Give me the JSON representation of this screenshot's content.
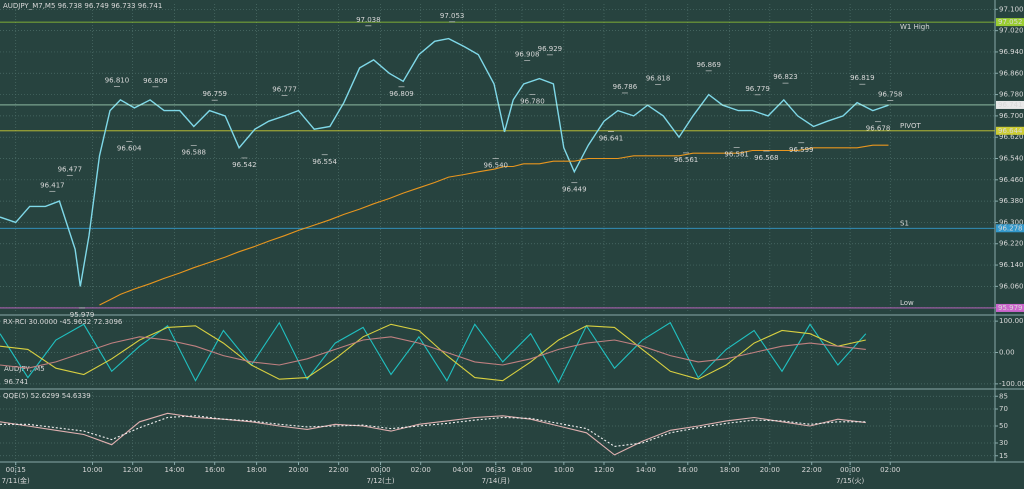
{
  "chart_data": [
    {
      "type": "line",
      "title": "AUDJPY_M7,M5  96.738 96.749 96.733 96.741",
      "symbol": "AUDJPY, M5",
      "last_price": 96.741,
      "xlim": [
        0,
        570
      ],
      "ylim": [
        95.96,
        97.12
      ],
      "grid": true,
      "xticks": [
        {
          "value": 9,
          "label": "00:15"
        },
        {
          "value": 53,
          "label": "10:00"
        },
        {
          "value": 76,
          "label": "12:00"
        },
        {
          "value": 100,
          "label": "14:00"
        },
        {
          "value": 123,
          "label": "16:00"
        },
        {
          "value": 147,
          "label": "18:00"
        },
        {
          "value": 171,
          "label": "20:00"
        },
        {
          "value": 194,
          "label": "22:00"
        },
        {
          "value": 218,
          "label": "00:00"
        },
        {
          "value": 241,
          "label": "02:00"
        },
        {
          "value": 265,
          "label": "04:00"
        },
        {
          "value": 284,
          "label": "06:35"
        },
        {
          "value": 299,
          "label": "08:00"
        },
        {
          "value": 323,
          "label": "10:00"
        },
        {
          "value": 346,
          "label": "12:00"
        },
        {
          "value": 370,
          "label": "14:00"
        },
        {
          "value": 394,
          "label": "16:00"
        },
        {
          "value": 418,
          "label": "18:00"
        },
        {
          "value": 441,
          "label": "20:00"
        },
        {
          "value": 465,
          "label": "22:00"
        },
        {
          "value": 487,
          "label": "00:00"
        },
        {
          "value": 510,
          "label": "02:00"
        }
      ],
      "dates": [
        {
          "value": 9,
          "label": "7/11(金)"
        },
        {
          "value": 218,
          "label": "7/12(土)"
        },
        {
          "value": 284,
          "label": "7/14(月)"
        },
        {
          "value": 487,
          "label": "7/15(火)"
        }
      ],
      "yticks": [
        {
          "value": 97.1,
          "label": "97.100"
        },
        {
          "value": 97.02,
          "label": "97.020"
        },
        {
          "value": 96.94,
          "label": "96.940"
        },
        {
          "value": 96.86,
          "label": "96.860"
        },
        {
          "value": 96.78,
          "label": "96.780"
        },
        {
          "value": 96.7,
          "label": "96.700"
        },
        {
          "value": 96.62,
          "label": "96.620"
        },
        {
          "value": 96.54,
          "label": "96.540"
        },
        {
          "value": 96.46,
          "label": "96.460"
        },
        {
          "value": 96.38,
          "label": "96.380"
        },
        {
          "value": 96.3,
          "label": "96.300"
        },
        {
          "value": 96.22,
          "label": "96.220"
        },
        {
          "value": 96.14,
          "label": "96.140"
        },
        {
          "value": 96.06,
          "label": "96.060"
        },
        {
          "value": 95.98,
          "label": "95.980"
        }
      ],
      "x": [
        0,
        9,
        17,
        26,
        34,
        43,
        46,
        51,
        57,
        63,
        69,
        77,
        86,
        94,
        103,
        111,
        120,
        129,
        137,
        146,
        154,
        163,
        171,
        180,
        189,
        197,
        206,
        214,
        223,
        231,
        240,
        249,
        257,
        266,
        274,
        283,
        289,
        294,
        300,
        309,
        317,
        323,
        329,
        337,
        346,
        354,
        363,
        371,
        380,
        389,
        397,
        406,
        414,
        423,
        431,
        440,
        449,
        457,
        466,
        474,
        483,
        491,
        500,
        509
      ],
      "series": [
        {
          "color": "#7fd8e8",
          "values": [
            96.32,
            96.3,
            96.36,
            96.36,
            96.38,
            96.2,
            96.06,
            96.25,
            96.55,
            96.72,
            96.76,
            96.73,
            96.76,
            96.72,
            96.72,
            96.66,
            96.72,
            96.7,
            96.58,
            96.65,
            96.68,
            96.7,
            96.72,
            96.65,
            96.66,
            96.75,
            96.88,
            96.91,
            96.86,
            96.83,
            96.93,
            96.98,
            96.99,
            96.96,
            96.93,
            96.82,
            96.64,
            96.76,
            96.82,
            96.84,
            96.82,
            96.58,
            96.49,
            96.59,
            96.68,
            96.72,
            96.7,
            96.74,
            96.7,
            96.62,
            96.7,
            96.78,
            96.74,
            96.72,
            96.72,
            96.7,
            96.76,
            96.7,
            96.66,
            96.68,
            96.7,
            96.75,
            96.72,
            96.74
          ]
        },
        {
          "color": "#e8961e",
          "values": [
            null,
            null,
            null,
            null,
            null,
            null,
            null,
            null,
            95.99,
            96.01,
            96.03,
            96.05,
            96.07,
            96.09,
            96.11,
            96.13,
            96.15,
            96.17,
            96.19,
            96.21,
            96.23,
            96.25,
            96.27,
            96.29,
            96.31,
            96.33,
            96.35,
            96.37,
            96.39,
            96.41,
            96.43,
            96.45,
            96.47,
            96.48,
            96.49,
            96.5,
            96.51,
            96.51,
            96.52,
            96.52,
            96.53,
            96.53,
            96.53,
            96.54,
            96.54,
            96.54,
            96.55,
            96.55,
            96.55,
            96.55,
            96.56,
            96.56,
            96.56,
            96.56,
            96.57,
            96.57,
            96.57,
            96.57,
            96.58,
            96.58,
            96.58,
            96.58,
            96.59,
            96.59
          ]
        }
      ],
      "levels": [
        {
          "value": 97.052,
          "label": "W1 High",
          "color": "#9acd32"
        },
        {
          "value": 96.644,
          "label": "PIVOT",
          "color": "#cccc33"
        },
        {
          "value": 96.278,
          "label": "S1",
          "color": "#3399cc"
        },
        {
          "value": 95.979,
          "label": "Low",
          "color": "#cc66cc"
        }
      ],
      "annotations": [
        {
          "x": 30,
          "value": 96.417,
          "label": "96.417"
        },
        {
          "x": 40,
          "value": 96.477,
          "label": "96.477"
        },
        {
          "x": 47,
          "value": 95.979,
          "label": "95.979"
        },
        {
          "x": 67,
          "value": 96.81,
          "label": "96.810"
        },
        {
          "x": 74,
          "value": 96.604,
          "label": "96.604"
        },
        {
          "x": 89,
          "value": 96.809,
          "label": "96.809"
        },
        {
          "x": 111,
          "value": 96.588,
          "label": "96.588"
        },
        {
          "x": 123,
          "value": 96.759,
          "label": "96.759"
        },
        {
          "x": 140,
          "value": 96.542,
          "label": "96.542"
        },
        {
          "x": 163,
          "value": 96.777,
          "label": "96.777"
        },
        {
          "x": 186,
          "value": 96.554,
          "label": "96.554"
        },
        {
          "x": 211,
          "value": 97.038,
          "label": "97.038"
        },
        {
          "x": 230,
          "value": 96.809,
          "label": "96.809"
        },
        {
          "x": 259,
          "value": 97.053,
          "label": "97.053"
        },
        {
          "x": 284,
          "value": 96.54,
          "label": "96.540"
        },
        {
          "x": 302,
          "value": 96.908,
          "label": "96.908"
        },
        {
          "x": 305,
          "value": 96.78,
          "label": "96.780"
        },
        {
          "x": 315,
          "value": 96.929,
          "label": "96.929"
        },
        {
          "x": 329,
          "value": 96.449,
          "label": "96.449"
        },
        {
          "x": 350,
          "value": 96.641,
          "label": "96.641"
        },
        {
          "x": 358,
          "value": 96.786,
          "label": "96.786"
        },
        {
          "x": 377,
          "value": 96.818,
          "label": "96.818"
        },
        {
          "x": 393,
          "value": 96.561,
          "label": "96.561"
        },
        {
          "x": 406,
          "value": 96.869,
          "label": "96.869"
        },
        {
          "x": 422,
          "value": 96.581,
          "label": "96.581"
        },
        {
          "x": 434,
          "value": 96.779,
          "label": "96.779"
        },
        {
          "x": 439,
          "value": 96.568,
          "label": "96.568"
        },
        {
          "x": 450,
          "value": 96.823,
          "label": "96.823"
        },
        {
          "x": 459,
          "value": 96.599,
          "label": "96.599"
        },
        {
          "x": 494,
          "value": 96.819,
          "label": "96.819"
        },
        {
          "x": 503,
          "value": 96.678,
          "label": "96.678"
        },
        {
          "x": 510,
          "value": 96.758,
          "label": "96.758"
        }
      ]
    },
    {
      "type": "line",
      "title": "RX-RCI 30.0000 -45.9632 72.3096",
      "xlim": [
        0,
        570
      ],
      "ylim": [
        -110,
        110
      ],
      "grid": true,
      "yticks": [
        {
          "value": 100,
          "label": "100.0000"
        },
        {
          "value": 0,
          "label": "0.00"
        },
        {
          "value": -100,
          "label": "-100.0000"
        }
      ],
      "x": [
        0,
        16,
        32,
        48,
        64,
        80,
        96,
        112,
        128,
        144,
        160,
        176,
        192,
        208,
        224,
        240,
        256,
        272,
        288,
        304,
        320,
        336,
        352,
        368,
        384,
        400,
        416,
        432,
        448,
        464,
        480,
        496
      ],
      "series": [
        {
          "color": "#20c0c0",
          "values": [
            60,
            -80,
            40,
            90,
            -60,
            20,
            85,
            -90,
            70,
            -40,
            95,
            -85,
            30,
            80,
            -70,
            50,
            -90,
            90,
            -30,
            60,
            -95,
            85,
            -50,
            40,
            95,
            -80,
            10,
            70,
            -60,
            90,
            -40,
            60
          ]
        },
        {
          "color": "#d8d040",
          "values": [
            20,
            10,
            -50,
            -70,
            -20,
            40,
            80,
            85,
            30,
            -40,
            -85,
            -80,
            -20,
            50,
            90,
            70,
            -10,
            -80,
            -90,
            -30,
            40,
            85,
            80,
            10,
            -60,
            -85,
            -40,
            30,
            70,
            60,
            20,
            40
          ]
        },
        {
          "color": "#c08080",
          "values": [
            -40,
            -50,
            -30,
            0,
            30,
            50,
            40,
            20,
            -10,
            -30,
            -40,
            -20,
            10,
            40,
            50,
            30,
            0,
            -30,
            -40,
            -20,
            10,
            30,
            40,
            20,
            -10,
            -30,
            -20,
            0,
            20,
            30,
            20,
            10
          ]
        }
      ]
    },
    {
      "type": "line",
      "title": "QQE(5) 52.6299 54.6339",
      "xlim": [
        0,
        570
      ],
      "ylim": [
        10,
        90
      ],
      "grid": true,
      "yticks": [
        85,
        70,
        50,
        30,
        15
      ],
      "x": [
        0,
        16,
        32,
        48,
        64,
        80,
        96,
        112,
        128,
        144,
        160,
        176,
        192,
        208,
        224,
        240,
        256,
        272,
        288,
        304,
        320,
        336,
        352,
        368,
        384,
        400,
        416,
        432,
        448,
        464,
        480,
        496
      ],
      "series": [
        {
          "color": "#e0b0b0",
          "dash": false,
          "values": [
            55,
            50,
            45,
            40,
            28,
            55,
            65,
            60,
            58,
            55,
            50,
            46,
            52,
            50,
            44,
            52,
            56,
            60,
            62,
            58,
            50,
            42,
            16,
            32,
            45,
            50,
            56,
            60,
            55,
            50,
            58,
            54
          ]
        },
        {
          "color": "#f0f0f0",
          "dash": true,
          "values": [
            52,
            52,
            48,
            44,
            34,
            48,
            60,
            62,
            58,
            56,
            52,
            49,
            50,
            51,
            47,
            50,
            53,
            57,
            60,
            59,
            53,
            47,
            26,
            30,
            42,
            48,
            53,
            57,
            56,
            52,
            55,
            55
          ]
        }
      ]
    }
  ]
}
